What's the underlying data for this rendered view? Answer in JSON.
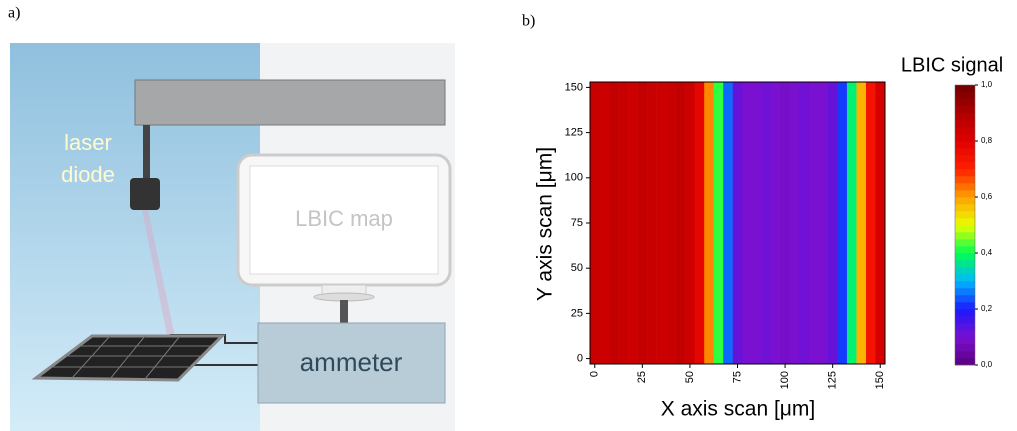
{
  "diagram": {
    "panel_a": "a)",
    "panel_b": "b)",
    "laser_line1": "laser",
    "laser_line2": "diode",
    "monitor": "LBIC map",
    "ammeter": "ammeter"
  },
  "chart_data": {
    "type": "heatmap",
    "title": "LBIC signal",
    "xlabel": "X axis scan [μm]",
    "ylabel": "Y axis scan [μm]",
    "x": [
      0,
      5,
      10,
      15,
      20,
      25,
      30,
      35,
      40,
      45,
      50,
      55,
      60,
      65,
      70,
      75,
      80,
      85,
      90,
      95,
      100,
      105,
      110,
      115,
      120,
      125,
      130,
      135,
      140,
      145,
      150
    ],
    "values": [
      0.85,
      0.84,
      0.86,
      0.85,
      0.84,
      0.86,
      0.85,
      0.84,
      0.85,
      0.86,
      0.84,
      0.78,
      0.62,
      0.42,
      0.25,
      0.12,
      0.1,
      0.1,
      0.11,
      0.1,
      0.09,
      0.1,
      0.11,
      0.1,
      0.1,
      0.12,
      0.22,
      0.38,
      0.58,
      0.74,
      0.82
    ],
    "xlim": [
      -2.5,
      152.5
    ],
    "ylim": [
      -3,
      153
    ],
    "xticks": [
      0,
      25,
      50,
      75,
      100,
      125,
      150
    ],
    "yticks": [
      0,
      25,
      50,
      75,
      100,
      125,
      150
    ],
    "clim": [
      0,
      1
    ],
    "cticks": [
      {
        "value": 0,
        "label": "0,0"
      },
      {
        "value": 0.2,
        "label": "0,2"
      },
      {
        "value": 0.4,
        "label": "0,4"
      },
      {
        "value": 0.6,
        "label": "0,6"
      },
      {
        "value": 0.8,
        "label": "0,8"
      },
      {
        "value": 1,
        "label": "1,0"
      }
    ],
    "colorscale": [
      "#5a0080",
      "#7a10d0",
      "#1a1aff",
      "#00b8ff",
      "#00ff50",
      "#e8ff00",
      "#ffa000",
      "#ff2000",
      "#e00000",
      "#b00000",
      "#700000"
    ]
  }
}
